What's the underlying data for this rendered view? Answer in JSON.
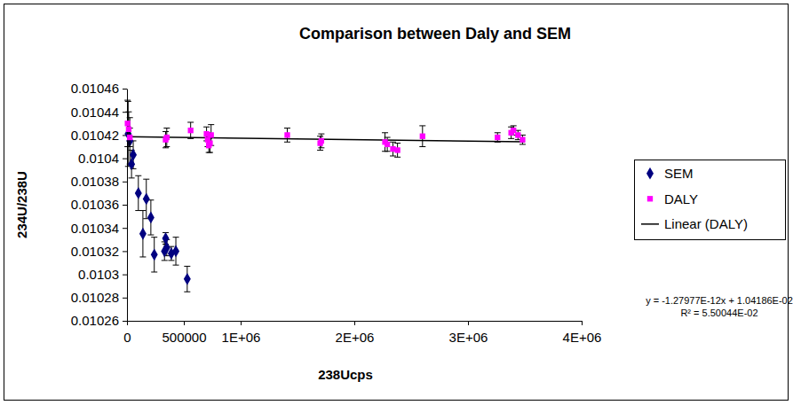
{
  "chart_data": {
    "type": "scatter",
    "title": "Comparison between Daly and SEM",
    "x_label": "238Ucps",
    "y_label": "234U/238U",
    "xlim": [
      0,
      4000000
    ],
    "ylim": [
      0.01026,
      0.01046
    ],
    "xticks": [
      0,
      500000,
      {
        "value": 1000000,
        "label": "1E+06"
      },
      {
        "value": 2000000,
        "label": "2E+06"
      },
      {
        "value": 3000000,
        "label": "3E+06"
      },
      {
        "value": 4000000,
        "label": "4E+06"
      }
    ],
    "yticks": [
      0.01026,
      0.01028,
      0.0103,
      0.01032,
      0.01034,
      0.01036,
      0.01038,
      0.0104,
      0.01042,
      0.01044,
      0.01046
    ],
    "grid": false,
    "legend": "right",
    "series": [
      {
        "name": "SEM",
        "type": "scatter",
        "color": "#000080",
        "marker": "diamond",
        "x": [
          10000,
          25000,
          40000,
          55000,
          100000,
          170000,
          140000,
          210000,
          240000,
          330000,
          340000,
          350000,
          390000,
          430000,
          530000
        ],
        "values": [
          0.010421,
          0.010415,
          0.010395,
          0.010403,
          0.01037,
          0.010365,
          0.010335,
          0.010349,
          0.010317,
          0.01032,
          0.010331,
          0.010323,
          0.010318,
          0.01032,
          0.010296
        ],
        "errors": [
          2.8e-05,
          2e-05,
          1.2e-05,
          1.2e-05,
          1.5e-05,
          1.7e-05,
          2e-05,
          1.5e-05,
          1.5e-05,
          8e-06,
          5e-06,
          7e-06,
          6e-06,
          1.2e-05,
          1.1e-05
        ]
      },
      {
        "name": "DALY",
        "type": "scatter",
        "color": "#ff00ff",
        "marker": "square",
        "x": [
          5000,
          15000,
          25000,
          340000,
          350000,
          560000,
          700000,
          710000,
          720000,
          730000,
          740000,
          1410000,
          1700000,
          1710000,
          2270000,
          2290000,
          2340000,
          2380000,
          2600000,
          3260000,
          3380000,
          3400000,
          3440000,
          3480000
        ],
        "values": [
          0.01043,
          0.010425,
          0.010418,
          0.010416,
          0.010418,
          0.010424,
          0.010421,
          0.010416,
          0.010411,
          0.010413,
          0.01042,
          0.01042,
          0.010413,
          0.010415,
          0.010414,
          0.010412,
          0.010408,
          0.010407,
          0.010419,
          0.010418,
          0.010422,
          0.010424,
          0.01042,
          0.010416
        ],
        "errors": [
          2e-05,
          1.5e-05,
          8e-06,
          7e-06,
          8e-06,
          7e-06,
          6e-06,
          6e-06,
          6e-06,
          8e-06,
          9e-06,
          6e-06,
          6e-06,
          6e-06,
          8e-06,
          6e-06,
          6e-06,
          6e-06,
          9e-06,
          4e-06,
          5e-06,
          4e-06,
          4e-06,
          4e-06
        ]
      },
      {
        "name": "Linear (DALY)",
        "type": "line",
        "color": "#000000",
        "line_style": "solid",
        "x": [
          0,
          3500000
        ],
        "values": [
          0.0104186,
          0.01041412
        ]
      }
    ],
    "annotations": [
      "y = -1.27977E-12x + 1.04186E-02",
      "R² = 5.50044E-02"
    ]
  }
}
